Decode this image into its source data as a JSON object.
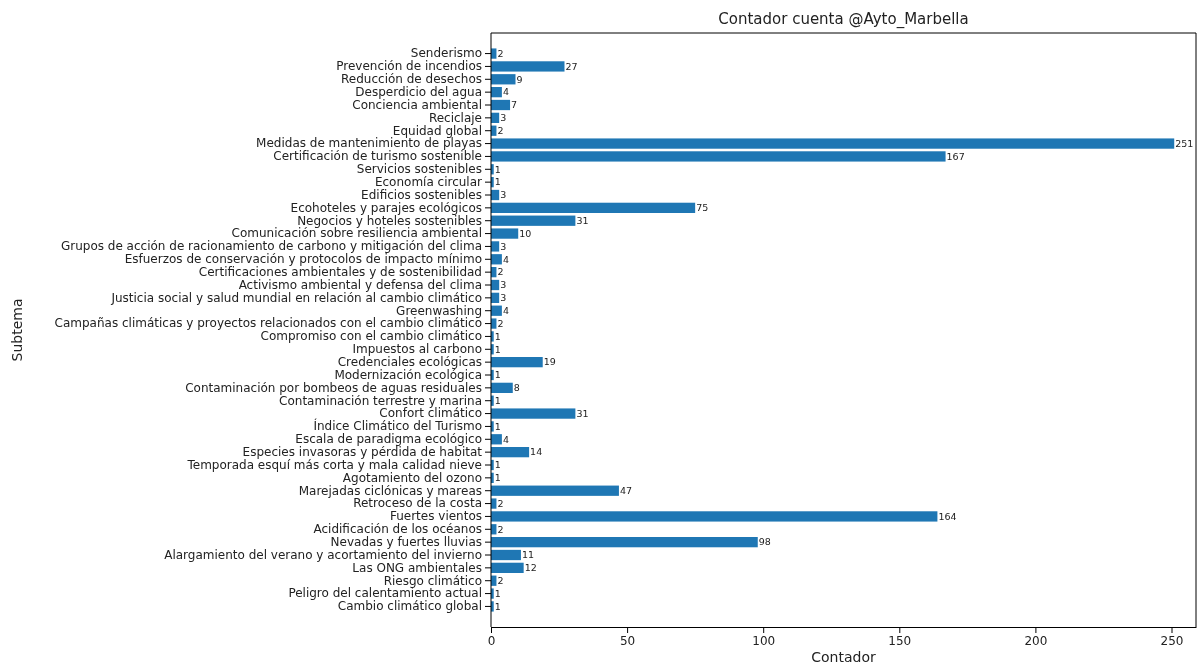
{
  "chart_data": {
    "type": "bar",
    "orientation": "horizontal",
    "title": "Contador cuenta @Ayto_Marbella",
    "xlabel": "Contador",
    "ylabel": "Subtema",
    "categories": [
      "Senderismo",
      "Prevención de incendios",
      "Reducción de desechos",
      "Desperdicio del agua",
      "Conciencia ambiental",
      "Reciclaje",
      "Equidad global",
      "Medidas de mantenimiento de playas",
      "Certificación de turismo sostenible",
      "Servicios sostenibles",
      "Economía circular",
      "Edificios sostenibles",
      "Ecohoteles y parajes ecológicos",
      "Negocios y hoteles sostenibles",
      "Comunicación sobre resiliencia ambiental",
      "Grupos de acción de racionamiento de carbono y mitigación del clima",
      "Esfuerzos de conservación y protocolos de impacto mínimo",
      "Certificaciones ambientales y de sostenibilidad",
      "Activismo ambiental y defensa del clima",
      "Justicia social y salud mundial en relación al cambio climático",
      "Greenwashing",
      "Campañas climáticas y proyectos relacionados con el cambio climático",
      "Compromiso con el cambio climático",
      "Impuestos al carbono",
      "Credenciales ecológicas",
      "Modernización ecológica",
      "Contaminación por bombeos de aguas residuales",
      "Contaminación terrestre y marina",
      "Confort climático",
      "Índice Climático del Turismo",
      "Escala de paradigma ecológico",
      "Especies invasoras y pérdida de habitat",
      "Temporada esquí más corta y mala calidad nieve",
      "Agotamiento del ozono",
      "Marejadas ciclónicas y mareas",
      "Retroceso de la costa",
      "Fuertes vientos",
      "Acidificación de los océanos",
      "Nevadas y fuertes lluvias",
      "Alargamiento del verano y acortamiento del invierno",
      "Las ONG ambientales",
      "Riesgo climático",
      "Peligro del calentamiento actual",
      "Cambio climático global"
    ],
    "values": [
      2,
      27,
      9,
      4,
      7,
      3,
      2,
      251,
      167,
      1,
      1,
      3,
      75,
      31,
      10,
      3,
      4,
      2,
      3,
      3,
      4,
      2,
      1,
      1,
      19,
      1,
      8,
      1,
      31,
      1,
      4,
      14,
      1,
      1,
      47,
      2,
      164,
      2,
      98,
      11,
      12,
      2,
      1,
      1
    ],
    "color": "#1f77b4",
    "data_labels": true,
    "xlim": [
      0,
      259
    ],
    "xticks": [
      0,
      50,
      100,
      150,
      200,
      250
    ],
    "grid": false
  }
}
